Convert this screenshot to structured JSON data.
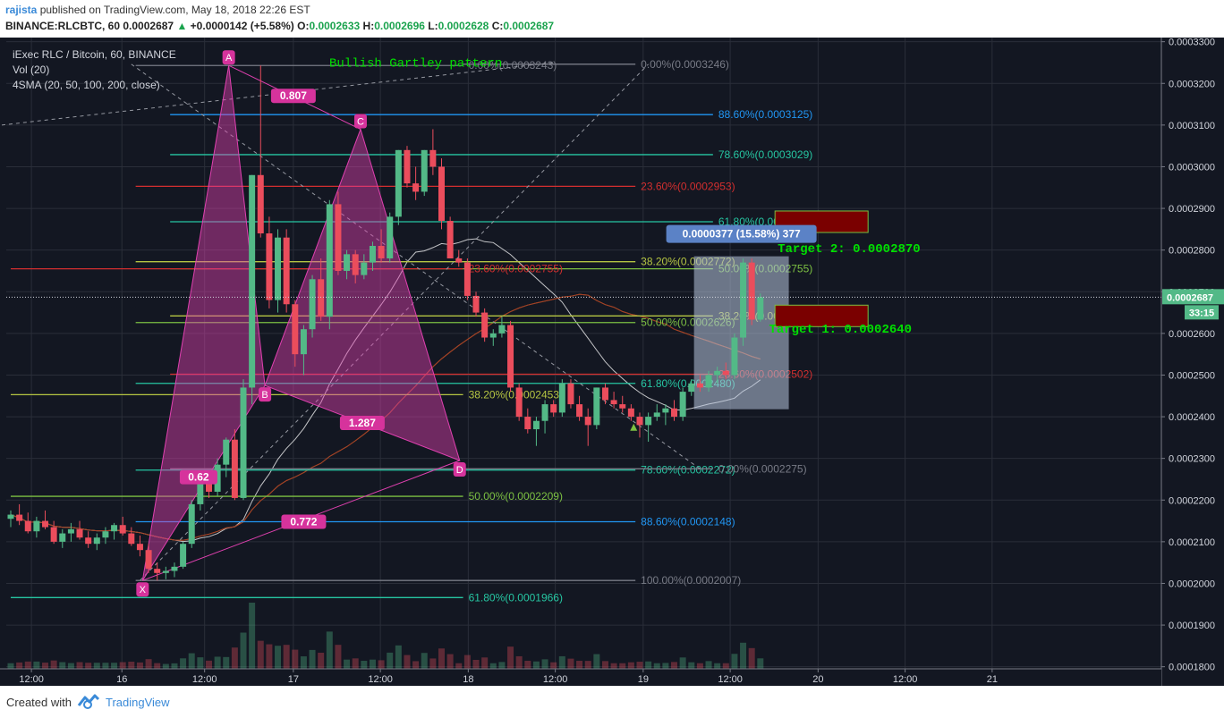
{
  "header": {
    "author": "rajista",
    "published_text": "published on TradingView.com, May 18, 2018 22:26 EST",
    "symbol": "BINANCE:RLCBTC, 60",
    "last": "0.0002687",
    "change": "+0.0000142 (+5.58%)",
    "o_label": "O:",
    "o": "0.0002633",
    "h_label": "H:",
    "h": "0.0002696",
    "l_label": "L:",
    "l": "0.0002628",
    "c_label": "C:",
    "c": "0.0002687"
  },
  "legend": {
    "title": "iExec RLC / Bitcoin, 60, BINANCE",
    "vol": "Vol (20)",
    "sma": "4SMA (20, 50, 100, 200, close)"
  },
  "annotations": {
    "pattern_title": "Bullish Gartley pattern",
    "target2": "Target 2: 0.0002870",
    "target1": "Target 1: 0.0002640",
    "measure": "0.0000377 (15.58%) 377",
    "price_tag": "0.0002687",
    "countdown": "33:15"
  },
  "footer": {
    "created_with": "Created with",
    "brand": "TradingView"
  },
  "colors": {
    "background": "#131722",
    "bull": "#53b987",
    "bear": "#eb4d5c",
    "pattern": "#e040b0",
    "grid": "#2a2e39",
    "axis_text": "#d1d4dc"
  },
  "chart_data": {
    "type": "candlestick",
    "xlim": [
      0,
      104
    ],
    "ylim": [
      0.0001795,
      0.000331
    ],
    "y_ticks": [
      "0.0003300",
      "0.0003200",
      "0.0003100",
      "0.0003000",
      "0.0002900",
      "0.0002800",
      "0.0002700",
      "0.0002600",
      "0.0002500",
      "0.0002400",
      "0.0002300",
      "0.0002200",
      "0.0002100",
      "0.0002000",
      "0.0001900",
      "0.0001800"
    ],
    "x_ticks": [
      {
        "x": 2.4,
        "label": "12:00"
      },
      {
        "x": 12.9,
        "label": "16"
      },
      {
        "x": 22.5,
        "label": "12:00"
      },
      {
        "x": 32.8,
        "label": "17"
      },
      {
        "x": 42.9,
        "label": "12:00"
      },
      {
        "x": 53.1,
        "label": "18"
      },
      {
        "x": 63.2,
        "label": "12:00"
      },
      {
        "x": 73.4,
        "label": "19"
      },
      {
        "x": 83.5,
        "label": "12:00"
      },
      {
        "x": 93.7,
        "label": "20"
      },
      {
        "x": 103.8,
        "label": "12:00"
      },
      {
        "x": 113.9,
        "label": "21"
      }
    ],
    "candles": [
      [
        0.0002155,
        0.0002175,
        0.0002135,
        0.0002165
      ],
      [
        0.0002165,
        0.000219,
        0.000214,
        0.000215
      ],
      [
        0.000215,
        0.000217,
        0.000212,
        0.0002125
      ],
      [
        0.0002125,
        0.000216,
        0.000211,
        0.000215
      ],
      [
        0.000215,
        0.0002175,
        0.000213,
        0.0002135
      ],
      [
        0.0002135,
        0.000215,
        0.0002095,
        0.00021
      ],
      [
        0.00021,
        0.000213,
        0.0002085,
        0.000212
      ],
      [
        0.000212,
        0.0002145,
        0.00021,
        0.000213
      ],
      [
        0.000213,
        0.000215,
        0.0002105,
        0.000211
      ],
      [
        0.000211,
        0.0002125,
        0.0002085,
        0.0002095
      ],
      [
        0.0002095,
        0.000212,
        0.000208,
        0.000211
      ],
      [
        0.000211,
        0.0002135,
        0.0002095,
        0.0002125
      ],
      [
        0.0002125,
        0.0002145,
        0.0002105,
        0.000214
      ],
      [
        0.000214,
        0.000216,
        0.0002115,
        0.000212
      ],
      [
        0.000212,
        0.0002135,
        0.000209,
        0.0002095
      ],
      [
        0.0002095,
        0.0002115,
        0.0002065,
        0.000208
      ],
      [
        0.000208,
        0.0002095,
        0.0002025,
        0.0002035
      ],
      [
        0.0002035,
        0.000205,
        0.0002007,
        0.0002025
      ],
      [
        0.0002025,
        0.000204,
        0.000201,
        0.000203
      ],
      [
        0.000203,
        0.000205,
        0.0002015,
        0.000204
      ],
      [
        0.000204,
        0.00021,
        0.0002035,
        0.0002095
      ],
      [
        0.0002095,
        0.00022,
        0.0002085,
        0.000219
      ],
      [
        0.000219,
        0.000226,
        0.0002175,
        0.000225
      ],
      [
        0.000225,
        0.000227,
        0.0002205,
        0.000222
      ],
      [
        0.000222,
        0.00023,
        0.000221,
        0.0002285
      ],
      [
        0.0002285,
        0.000235,
        0.0002255,
        0.0002345
      ],
      [
        0.0002345,
        0.000237,
        0.00022,
        0.0002205
      ],
      [
        0.0002205,
        0.000249,
        0.00022,
        0.000247
      ],
      [
        0.000247,
        0.000298,
        0.000243,
        0.000298
      ],
      [
        0.000298,
        0.0003243,
        0.000283,
        0.000284
      ],
      [
        0.000284,
        0.000288,
        0.000266,
        0.000268
      ],
      [
        0.000268,
        0.000285,
        0.000265,
        0.000283
      ],
      [
        0.000283,
        0.000285,
        0.000265,
        0.000267
      ],
      [
        0.000267,
        0.000268,
        0.000252,
        0.000255
      ],
      [
        0.000255,
        0.000262,
        0.00025,
        0.000261
      ],
      [
        0.000261,
        0.000274,
        0.000259,
        0.000273
      ],
      [
        0.000273,
        0.000278,
        0.000263,
        0.000264
      ],
      [
        0.000264,
        0.000292,
        0.000261,
        0.000291
      ],
      [
        0.000291,
        0.000294,
        0.000274,
        0.000275
      ],
      [
        0.000275,
        0.00028,
        0.000273,
        0.000279
      ],
      [
        0.000279,
        0.00028,
        0.000272,
        0.000274
      ],
      [
        0.000274,
        0.000279,
        0.000273,
        0.000277
      ],
      [
        0.000277,
        0.000282,
        0.000275,
        0.000281
      ],
      [
        0.000281,
        0.000285,
        0.000277,
        0.000278
      ],
      [
        0.000278,
        0.000289,
        0.000277,
        0.000288
      ],
      [
        0.000288,
        0.000304,
        0.000286,
        0.000304
      ],
      [
        0.000304,
        0.000305,
        0.000295,
        0.000296
      ],
      [
        0.000296,
        0.0003,
        0.000292,
        0.000294
      ],
      [
        0.000294,
        0.000304,
        0.000293,
        0.000304
      ],
      [
        0.000304,
        0.000309,
        0.000298,
        0.0003
      ],
      [
        0.0003,
        0.000302,
        0.000285,
        0.000287
      ],
      [
        0.000287,
        0.000288,
        0.000278,
        0.000278
      ],
      [
        0.000278,
        0.00028,
        0.000276,
        0.000277
      ],
      [
        0.000277,
        0.000278,
        0.000268,
        0.000269
      ],
      [
        0.000269,
        0.00027,
        0.000264,
        0.000265
      ],
      [
        0.000265,
        0.000266,
        0.000258,
        0.000259
      ],
      [
        0.000259,
        0.000261,
        0.000257,
        0.00026
      ],
      [
        0.00026,
        0.000264,
        0.000259,
        0.000262
      ],
      [
        0.000262,
        0.000263,
        0.000246,
        0.000247
      ],
      [
        0.000247,
        0.000248,
        0.000239,
        0.00024
      ],
      [
        0.00024,
        0.000242,
        0.000236,
        0.000237
      ],
      [
        0.000237,
        0.00024,
        0.000233,
        0.000239
      ],
      [
        0.000239,
        0.000244,
        0.000236,
        0.000243
      ],
      [
        0.000243,
        0.000244,
        0.00024,
        0.000241
      ],
      [
        0.000241,
        0.000249,
        0.00024,
        0.000248
      ],
      [
        0.000248,
        0.000249,
        0.000242,
        0.000243
      ],
      [
        0.000243,
        0.000245,
        0.000239,
        0.00024
      ],
      [
        0.00024,
        0.000242,
        0.000233,
        0.000238
      ],
      [
        0.000238,
        0.000247,
        0.000237,
        0.000247
      ],
      [
        0.000247,
        0.000248,
        0.000243,
        0.000244
      ],
      [
        0.000244,
        0.000246,
        0.000242,
        0.000243
      ],
      [
        0.000243,
        0.000245,
        0.000241,
        0.000242
      ],
      [
        0.000242,
        0.000243,
        0.000239,
        0.00024
      ],
      [
        0.00024,
        0.000241,
        0.000235,
        0.000238
      ],
      [
        0.000238,
        0.000241,
        0.000234,
        0.00024
      ],
      [
        0.00024,
        0.000243,
        0.000239,
        0.000241
      ],
      [
        0.000241,
        0.000243,
        0.000238,
        0.000242
      ],
      [
        0.000242,
        0.000244,
        0.000239,
        0.00024
      ],
      [
        0.00024,
        0.000247,
        0.000239,
        0.000246
      ],
      [
        0.000246,
        0.000249,
        0.000245,
        0.000248
      ],
      [
        0.000248,
        0.00025,
        0.000246,
        0.000247
      ],
      [
        0.000247,
        0.000251,
        0.000246,
        0.00025
      ],
      [
        0.00025,
        0.000252,
        0.000248,
        0.000251
      ],
      [
        0.000251,
        0.000253,
        0.000249,
        0.00025
      ],
      [
        0.00025,
        0.00026,
        0.000249,
        0.000259
      ],
      [
        0.000259,
        0.000278,
        0.000257,
        0.000277
      ],
      [
        0.000277,
        0.000278,
        0.000262,
        0.0002633
      ],
      [
        0.0002633,
        0.0002696,
        0.0002628,
        0.0002687
      ]
    ],
    "fib_levels": [
      {
        "label": "0.00%(0.0003243)",
        "price": 0.0003243,
        "color": "#787b86",
        "x1": 14.5,
        "x2": 52.5
      },
      {
        "label": "0.00%(0.0003246)",
        "price": 0.0003246,
        "color": "#787b86",
        "x1": 52.5,
        "x2": 72.5
      },
      {
        "label": "88.60%(0.0003125)",
        "price": 0.0003125,
        "color": "#2196f3",
        "x1": 18.5,
        "x2": 81.5
      },
      {
        "label": "78.60%(0.0003029)",
        "price": 0.0003029,
        "color": "#26c6a2",
        "x1": 18.5,
        "x2": 81.5
      },
      {
        "label": "23.60%(0.0002953)",
        "price": 0.0002953,
        "color": "#d32f2f",
        "x1": 14.5,
        "x2": 72.5
      },
      {
        "label": "61.80%(0.0002868)",
        "price": 0.0002868,
        "color": "#26c6a2",
        "x1": 18.5,
        "x2": 81.5
      },
      {
        "label": "38.20%(0.0002772)",
        "price": 0.0002772,
        "color": "#b5c542",
        "x1": 14.5,
        "x2": 72.5
      },
      {
        "label": "50.00%(0.0002755)",
        "price": 0.0002755,
        "color": "#7cc042",
        "x1": 18.5,
        "x2": 81.5
      },
      {
        "label": "23.60%(0.0002755)",
        "price": 0.0002755,
        "color": "#d32f2f",
        "x1": 0,
        "x2": 52.5
      },
      {
        "label": "38.20%(0.0002642)",
        "price": 0.0002642,
        "color": "#b5c542",
        "x1": 18.5,
        "x2": 81.5
      },
      {
        "label": "50.00%(0.0002626)",
        "price": 0.0002626,
        "color": "#7cc042",
        "x1": 14.5,
        "x2": 72.5
      },
      {
        "label": "23.60%(0.0002502)",
        "price": 0.0002502,
        "color": "#d32f2f",
        "x1": 18.5,
        "x2": 81.5
      },
      {
        "label": "61.80%(0.0002480)",
        "price": 0.000248,
        "color": "#26c6a2",
        "x1": 14.5,
        "x2": 72.5
      },
      {
        "label": "38.20%(0.0002453)",
        "price": 0.0002453,
        "color": "#b5c542",
        "x1": 0,
        "x2": 52.5
      },
      {
        "label": "78.60%(0.0002272)",
        "price": 0.0002272,
        "color": "#26c6a2",
        "x1": 14.5,
        "x2": 72.5
      },
      {
        "label": "0.00%(0.0002275)",
        "price": 0.0002275,
        "color": "#787b86",
        "x1": 18.5,
        "x2": 81.5
      },
      {
        "label": "50.00%(0.0002209)",
        "price": 0.0002209,
        "color": "#7cc042",
        "x1": 0,
        "x2": 52.5
      },
      {
        "label": "88.60%(0.0002148)",
        "price": 0.0002148,
        "color": "#2196f3",
        "x1": 14.5,
        "x2": 72.5
      },
      {
        "label": "100.00%(0.0002007)",
        "price": 0.0002007,
        "color": "#787b86",
        "x1": 14.5,
        "x2": 72.5
      },
      {
        "label": "61.80%(0.0001966)",
        "price": 0.0001966,
        "color": "#26c6a2",
        "x1": 0,
        "x2": 52.5
      }
    ],
    "pattern_points": [
      {
        "label": "X",
        "x": 15.3,
        "price": 0.0002007
      },
      {
        "label": "A",
        "x": 25.3,
        "price": 0.0003243
      },
      {
        "label": "B",
        "x": 29.5,
        "price": 0.0002475
      },
      {
        "label": "C",
        "x": 40.6,
        "price": 0.000309
      },
      {
        "label": "D",
        "x": 52.1,
        "price": 0.0002295
      }
    ],
    "ratios": [
      {
        "label": "0.807",
        "x": 32.8,
        "price": 0.000317
      },
      {
        "label": "1.287",
        "x": 40.8,
        "price": 0.0002385
      },
      {
        "label": "0.772",
        "x": 34.0,
        "price": 0.0002148
      },
      {
        "label": "0.62",
        "x": 21.8,
        "price": 0.0002255
      }
    ],
    "sma": [
      {
        "period": 20,
        "color": "#ffffff"
      },
      {
        "period": 50,
        "color": "#f57c00"
      },
      {
        "period": 100,
        "color": "#2e7d32"
      },
      {
        "period": 200,
        "color": "#c62828"
      }
    ]
  }
}
